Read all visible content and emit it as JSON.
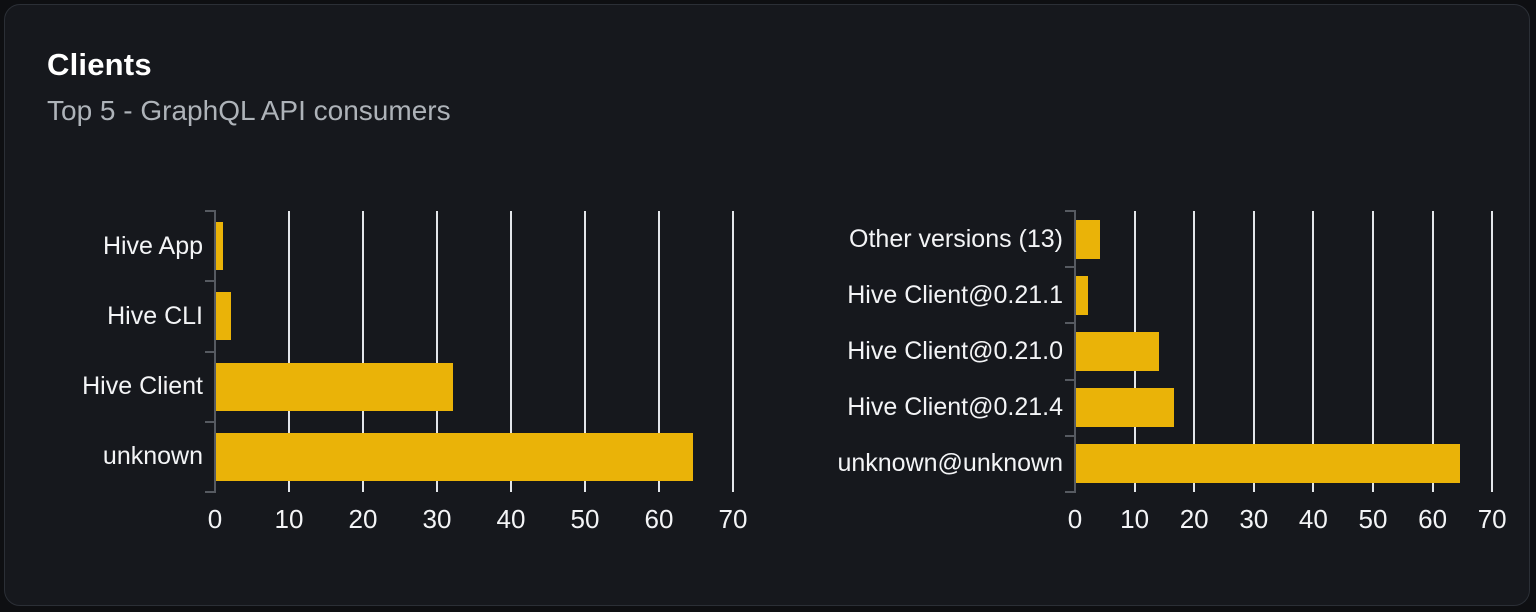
{
  "panel": {
    "title": "Clients",
    "subtitle": "Top 5 - GraphQL API consumers"
  },
  "colors": {
    "bar": "#eab308",
    "card_background": "#16181d",
    "card_border": "#2b2f36",
    "page_background": "#0e0f12",
    "gridline": "#e3e6ea",
    "axis": "#565a61",
    "label_text": "#f3f4f6",
    "title_text": "#ffffff",
    "subtitle_text": "#aeb3b9"
  },
  "chart_data": [
    {
      "type": "bar",
      "orientation": "horizontal",
      "categories": [
        "Hive App",
        "Hive CLI",
        "Hive Client",
        "unknown"
      ],
      "values": [
        1,
        2,
        32,
        64.5
      ],
      "x_tick_labels": [
        "0",
        "10",
        "20",
        "30",
        "40",
        "50",
        "60",
        "70"
      ],
      "xlim": [
        0,
        70
      ],
      "grid": true,
      "legend": false,
      "bar_color": "#eab308"
    },
    {
      "type": "bar",
      "orientation": "horizontal",
      "categories": [
        "Other versions (13)",
        "Hive Client@0.21.1",
        "Hive Client@0.21.0",
        "Hive Client@0.21.4",
        "unknown@unknown"
      ],
      "values": [
        4,
        2,
        14,
        16.5,
        64.5
      ],
      "x_tick_labels": [
        "0",
        "10",
        "20",
        "30",
        "40",
        "50",
        "60",
        "70"
      ],
      "xlim": [
        0,
        70
      ],
      "grid": true,
      "legend": false,
      "bar_color": "#eab308"
    }
  ]
}
